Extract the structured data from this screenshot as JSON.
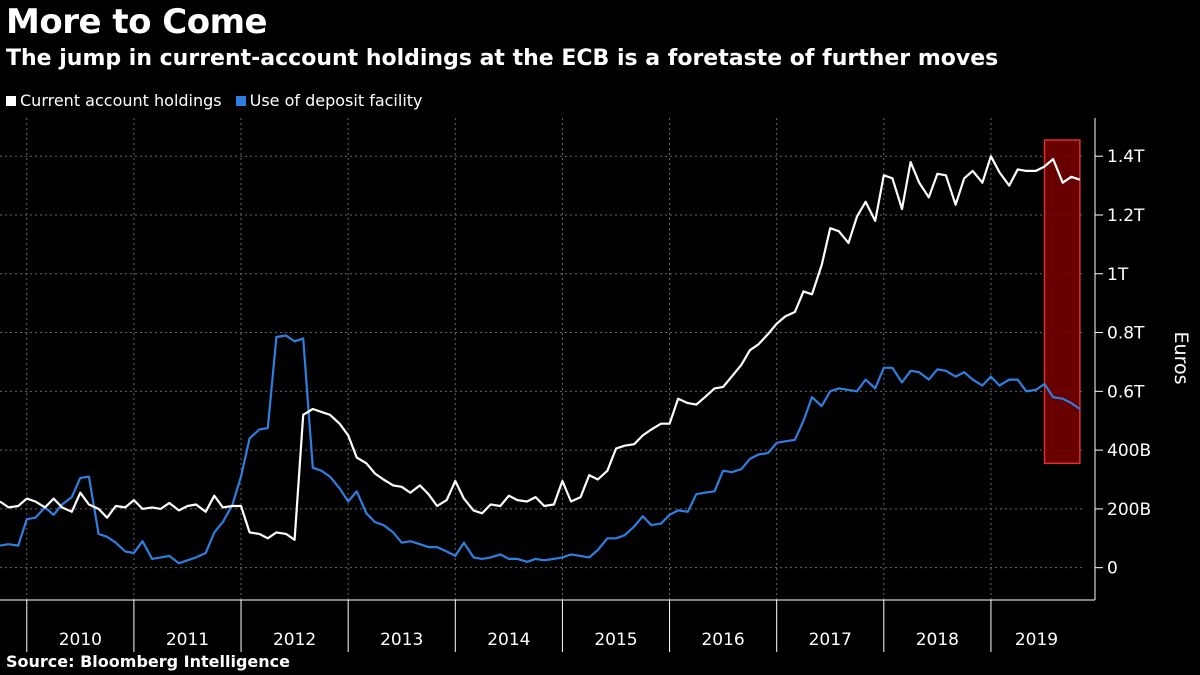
{
  "header": {
    "title": "More to Come",
    "subtitle": "The jump in current-account holdings at the ECB is a foretaste of further moves"
  },
  "footer": {
    "source": "Source: Bloomberg Intelligence"
  },
  "colors": {
    "background": "#000000",
    "current_account": "#ffffff",
    "deposit_facility": "#2f7fe0",
    "highlight_fill": "#7a0000",
    "highlight_stroke": "#e03030",
    "grid": "#666666"
  },
  "chart_data": {
    "type": "line",
    "title": "More to Come",
    "subtitle": "The jump in current-account holdings at the ECB is a foretaste of further moves",
    "ylabel": "Euros",
    "xlabel": "",
    "y_unit": "billions of euros",
    "ylim": [
      -110,
      1530
    ],
    "yticks": [
      {
        "value": 0,
        "label": "0"
      },
      {
        "value": 200,
        "label": "200B"
      },
      {
        "value": 400,
        "label": "400B"
      },
      {
        "value": 600,
        "label": "0.6T"
      },
      {
        "value": 800,
        "label": "0.8T"
      },
      {
        "value": 1000,
        "label": "1T"
      },
      {
        "value": 1200,
        "label": "1.2T"
      },
      {
        "value": 1400,
        "label": "1.4T"
      }
    ],
    "xlim": [
      2009.75,
      2019.85
    ],
    "year_labels": [
      "2010",
      "2011",
      "2012",
      "2013",
      "2014",
      "2015",
      "2016",
      "2017",
      "2018",
      "2019"
    ],
    "grid": true,
    "legend_position": "top-left",
    "highlight_region": {
      "x_start": 2019.5,
      "x_end": 2019.83,
      "y_start": 355,
      "y_end": 1455
    },
    "series": [
      {
        "name": "Current account holdings",
        "color": "#ffffff",
        "points": [
          [
            2009.75,
            225
          ],
          [
            2009.83,
            205
          ],
          [
            2009.92,
            210
          ],
          [
            2010.0,
            235
          ],
          [
            2010.08,
            225
          ],
          [
            2010.17,
            205
          ],
          [
            2010.25,
            235
          ],
          [
            2010.33,
            205
          ],
          [
            2010.42,
            190
          ],
          [
            2010.5,
            255
          ],
          [
            2010.58,
            215
          ],
          [
            2010.67,
            200
          ],
          [
            2010.75,
            170
          ],
          [
            2010.83,
            210
          ],
          [
            2010.92,
            205
          ],
          [
            2011.0,
            230
          ],
          [
            2011.08,
            200
          ],
          [
            2011.17,
            205
          ],
          [
            2011.25,
            200
          ],
          [
            2011.33,
            220
          ],
          [
            2011.42,
            195
          ],
          [
            2011.5,
            210
          ],
          [
            2011.58,
            215
          ],
          [
            2011.67,
            190
          ],
          [
            2011.75,
            245
          ],
          [
            2011.83,
            205
          ],
          [
            2011.92,
            210
          ],
          [
            2012.0,
            210
          ],
          [
            2012.08,
            120
          ],
          [
            2012.17,
            115
          ],
          [
            2012.25,
            100
          ],
          [
            2012.33,
            120
          ],
          [
            2012.42,
            115
          ],
          [
            2012.5,
            95
          ],
          [
            2012.58,
            520
          ],
          [
            2012.67,
            540
          ],
          [
            2012.75,
            530
          ],
          [
            2012.83,
            520
          ],
          [
            2012.92,
            490
          ],
          [
            2013.0,
            450
          ],
          [
            2013.08,
            375
          ],
          [
            2013.17,
            355
          ],
          [
            2013.25,
            320
          ],
          [
            2013.33,
            300
          ],
          [
            2013.42,
            280
          ],
          [
            2013.5,
            275
          ],
          [
            2013.58,
            255
          ],
          [
            2013.67,
            280
          ],
          [
            2013.75,
            250
          ],
          [
            2013.83,
            210
          ],
          [
            2013.92,
            230
          ],
          [
            2014.0,
            295
          ],
          [
            2014.08,
            235
          ],
          [
            2014.17,
            195
          ],
          [
            2014.25,
            185
          ],
          [
            2014.33,
            215
          ],
          [
            2014.42,
            210
          ],
          [
            2014.5,
            245
          ],
          [
            2014.58,
            230
          ],
          [
            2014.67,
            225
          ],
          [
            2014.75,
            240
          ],
          [
            2014.83,
            210
          ],
          [
            2014.92,
            215
          ],
          [
            2015.0,
            295
          ],
          [
            2015.08,
            225
          ],
          [
            2015.17,
            240
          ],
          [
            2015.25,
            315
          ],
          [
            2015.33,
            300
          ],
          [
            2015.42,
            330
          ],
          [
            2015.5,
            405
          ],
          [
            2015.58,
            415
          ],
          [
            2015.67,
            420
          ],
          [
            2015.75,
            450
          ],
          [
            2015.83,
            470
          ],
          [
            2015.92,
            490
          ],
          [
            2016.0,
            490
          ],
          [
            2016.08,
            575
          ],
          [
            2016.17,
            560
          ],
          [
            2016.25,
            555
          ],
          [
            2016.33,
            580
          ],
          [
            2016.42,
            610
          ],
          [
            2016.5,
            615
          ],
          [
            2016.58,
            650
          ],
          [
            2016.67,
            690
          ],
          [
            2016.75,
            740
          ],
          [
            2016.83,
            760
          ],
          [
            2016.92,
            795
          ],
          [
            2017.0,
            830
          ],
          [
            2017.08,
            855
          ],
          [
            2017.17,
            870
          ],
          [
            2017.25,
            940
          ],
          [
            2017.33,
            930
          ],
          [
            2017.42,
            1030
          ],
          [
            2017.5,
            1155
          ],
          [
            2017.58,
            1145
          ],
          [
            2017.67,
            1105
          ],
          [
            2017.75,
            1195
          ],
          [
            2017.83,
            1245
          ],
          [
            2017.92,
            1180
          ],
          [
            2018.0,
            1335
          ],
          [
            2018.08,
            1325
          ],
          [
            2018.17,
            1220
          ],
          [
            2018.25,
            1380
          ],
          [
            2018.33,
            1310
          ],
          [
            2018.42,
            1260
          ],
          [
            2018.5,
            1340
          ],
          [
            2018.58,
            1335
          ],
          [
            2018.67,
            1235
          ],
          [
            2018.75,
            1325
          ],
          [
            2018.83,
            1350
          ],
          [
            2018.92,
            1310
          ],
          [
            2019.0,
            1400
          ],
          [
            2019.08,
            1345
          ],
          [
            2019.17,
            1300
          ],
          [
            2019.25,
            1355
          ],
          [
            2019.33,
            1350
          ],
          [
            2019.42,
            1350
          ],
          [
            2019.5,
            1365
          ],
          [
            2019.58,
            1390
          ],
          [
            2019.67,
            1310
          ],
          [
            2019.75,
            1330
          ],
          [
            2019.83,
            1320
          ],
          [
            2019.92,
            1390
          ]
        ]
      },
      {
        "name": "Use of deposit facility",
        "color": "#2f7fe0",
        "points": [
          [
            2009.75,
            75
          ],
          [
            2009.83,
            80
          ],
          [
            2009.92,
            75
          ],
          [
            2010.0,
            165
          ],
          [
            2010.08,
            170
          ],
          [
            2010.17,
            205
          ],
          [
            2010.25,
            180
          ],
          [
            2010.33,
            215
          ],
          [
            2010.42,
            240
          ],
          [
            2010.5,
            305
          ],
          [
            2010.58,
            310
          ],
          [
            2010.67,
            115
          ],
          [
            2010.75,
            105
          ],
          [
            2010.83,
            85
          ],
          [
            2010.92,
            55
          ],
          [
            2011.0,
            50
          ],
          [
            2011.08,
            90
          ],
          [
            2011.17,
            30
          ],
          [
            2011.25,
            35
          ],
          [
            2011.33,
            40
          ],
          [
            2011.42,
            15
          ],
          [
            2011.5,
            25
          ],
          [
            2011.58,
            35
          ],
          [
            2011.67,
            50
          ],
          [
            2011.75,
            120
          ],
          [
            2011.83,
            155
          ],
          [
            2011.92,
            215
          ],
          [
            2012.0,
            310
          ],
          [
            2012.08,
            440
          ],
          [
            2012.17,
            470
          ],
          [
            2012.25,
            475
          ],
          [
            2012.33,
            785
          ],
          [
            2012.42,
            790
          ],
          [
            2012.5,
            770
          ],
          [
            2012.58,
            780
          ],
          [
            2012.67,
            340
          ],
          [
            2012.75,
            330
          ],
          [
            2012.83,
            310
          ],
          [
            2012.92,
            270
          ],
          [
            2013.0,
            225
          ],
          [
            2013.08,
            260
          ],
          [
            2013.17,
            185
          ],
          [
            2013.25,
            155
          ],
          [
            2013.33,
            145
          ],
          [
            2013.42,
            120
          ],
          [
            2013.5,
            85
          ],
          [
            2013.58,
            90
          ],
          [
            2013.67,
            80
          ],
          [
            2013.75,
            70
          ],
          [
            2013.83,
            70
          ],
          [
            2013.92,
            55
          ],
          [
            2014.0,
            40
          ],
          [
            2014.08,
            85
          ],
          [
            2014.17,
            35
          ],
          [
            2014.25,
            30
          ],
          [
            2014.33,
            35
          ],
          [
            2014.42,
            45
          ],
          [
            2014.5,
            30
          ],
          [
            2014.58,
            30
          ],
          [
            2014.67,
            20
          ],
          [
            2014.75,
            30
          ],
          [
            2014.83,
            25
          ],
          [
            2014.92,
            30
          ],
          [
            2015.0,
            35
          ],
          [
            2015.08,
            45
          ],
          [
            2015.17,
            40
          ],
          [
            2015.25,
            35
          ],
          [
            2015.33,
            60
          ],
          [
            2015.42,
            100
          ],
          [
            2015.5,
            100
          ],
          [
            2015.58,
            110
          ],
          [
            2015.67,
            140
          ],
          [
            2015.75,
            175
          ],
          [
            2015.83,
            145
          ],
          [
            2015.92,
            150
          ],
          [
            2016.0,
            180
          ],
          [
            2016.08,
            195
          ],
          [
            2016.17,
            190
          ],
          [
            2016.25,
            250
          ],
          [
            2016.33,
            255
          ],
          [
            2016.42,
            260
          ],
          [
            2016.5,
            330
          ],
          [
            2016.58,
            325
          ],
          [
            2016.67,
            335
          ],
          [
            2016.75,
            370
          ],
          [
            2016.83,
            385
          ],
          [
            2016.92,
            390
          ],
          [
            2017.0,
            425
          ],
          [
            2017.08,
            430
          ],
          [
            2017.17,
            435
          ],
          [
            2017.25,
            500
          ],
          [
            2017.33,
            580
          ],
          [
            2017.42,
            550
          ],
          [
            2017.5,
            600
          ],
          [
            2017.58,
            610
          ],
          [
            2017.67,
            605
          ],
          [
            2017.75,
            600
          ],
          [
            2017.83,
            640
          ],
          [
            2017.92,
            610
          ],
          [
            2018.0,
            680
          ],
          [
            2018.08,
            680
          ],
          [
            2018.17,
            630
          ],
          [
            2018.25,
            670
          ],
          [
            2018.33,
            665
          ],
          [
            2018.42,
            640
          ],
          [
            2018.5,
            675
          ],
          [
            2018.58,
            670
          ],
          [
            2018.67,
            650
          ],
          [
            2018.75,
            665
          ],
          [
            2018.83,
            640
          ],
          [
            2018.92,
            620
          ],
          [
            2019.0,
            650
          ],
          [
            2019.08,
            620
          ],
          [
            2019.17,
            640
          ],
          [
            2019.25,
            640
          ],
          [
            2019.33,
            600
          ],
          [
            2019.42,
            605
          ],
          [
            2019.5,
            625
          ],
          [
            2019.58,
            580
          ],
          [
            2019.67,
            575
          ],
          [
            2019.75,
            560
          ],
          [
            2019.83,
            540
          ],
          [
            2019.92,
            465
          ]
        ]
      }
    ]
  }
}
